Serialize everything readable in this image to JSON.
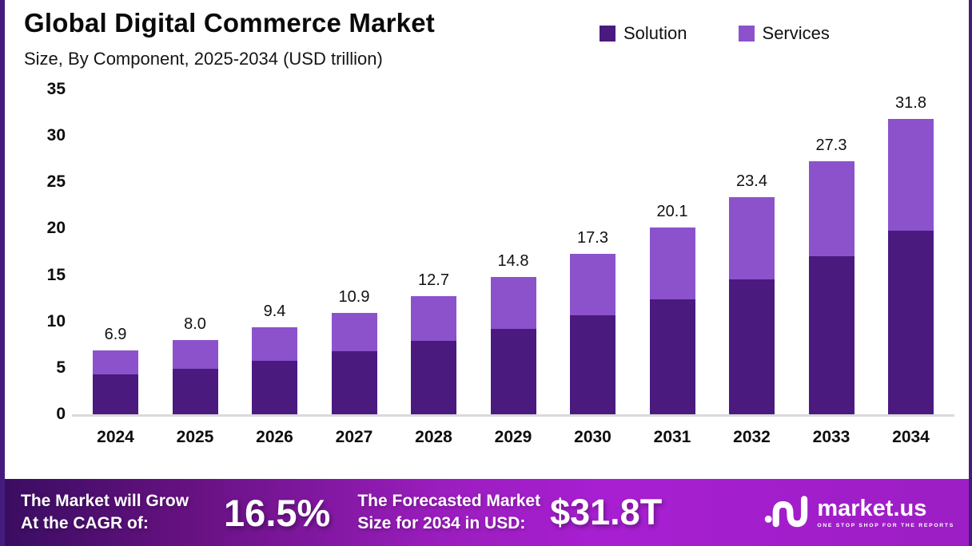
{
  "header": {
    "title": "Global Digital Commerce Market",
    "subtitle": "Size, By Component, 2025-2034 (USD trillion)"
  },
  "legend": [
    {
      "label": "Solution",
      "color": "#4a1a7f"
    },
    {
      "label": "Services",
      "color": "#8c52cc"
    }
  ],
  "chart_data": {
    "type": "bar",
    "stacked": true,
    "title": "Global Digital Commerce Market",
    "subtitle": "Size, By Component, 2025-2034 (USD trillion)",
    "unit": "USD trillion",
    "categories": [
      "2024",
      "2025",
      "2026",
      "2027",
      "2028",
      "2029",
      "2030",
      "2031",
      "2032",
      "2033",
      "2034"
    ],
    "series": [
      {
        "name": "Solution",
        "color": "#4a1a7f",
        "values": [
          4.3,
          4.9,
          5.8,
          6.8,
          7.9,
          9.2,
          10.7,
          12.4,
          14.5,
          17.0,
          19.8
        ]
      },
      {
        "name": "Services",
        "color": "#8c52cc",
        "values": [
          2.6,
          3.1,
          3.6,
          4.1,
          4.8,
          5.6,
          6.6,
          7.7,
          8.9,
          10.3,
          12.0
        ]
      }
    ],
    "totals_labels": [
      "6.9",
      "8.0",
      "9.4",
      "10.9",
      "12.7",
      "14.8",
      "17.3",
      "20.1",
      "23.4",
      "27.3",
      "31.8"
    ],
    "ylim": [
      0,
      35
    ],
    "yticks": [
      0,
      5,
      10,
      15,
      20,
      25,
      30,
      35
    ],
    "grid": false,
    "legend_position": "top-right"
  },
  "footer": {
    "cagr_label_line1": "The Market will Grow",
    "cagr_label_line2": "At the CAGR of:",
    "cagr_value": "16.5%",
    "forecast_label_line1": "The Forecasted Market",
    "forecast_label_line2": "Size for 2034 in USD:",
    "forecast_value": "$31.8T",
    "brand": {
      "name": "market.us",
      "tagline": "ONE STOP SHOP FOR THE REPORTS"
    }
  },
  "colors": {
    "solution": "#4a1a7f",
    "services": "#8c52cc",
    "frame_border": "#451c7e",
    "banner_gradient_start": "#3a0d61",
    "banner_gradient_end": "#a81fd2",
    "baseline": "#dadada"
  }
}
